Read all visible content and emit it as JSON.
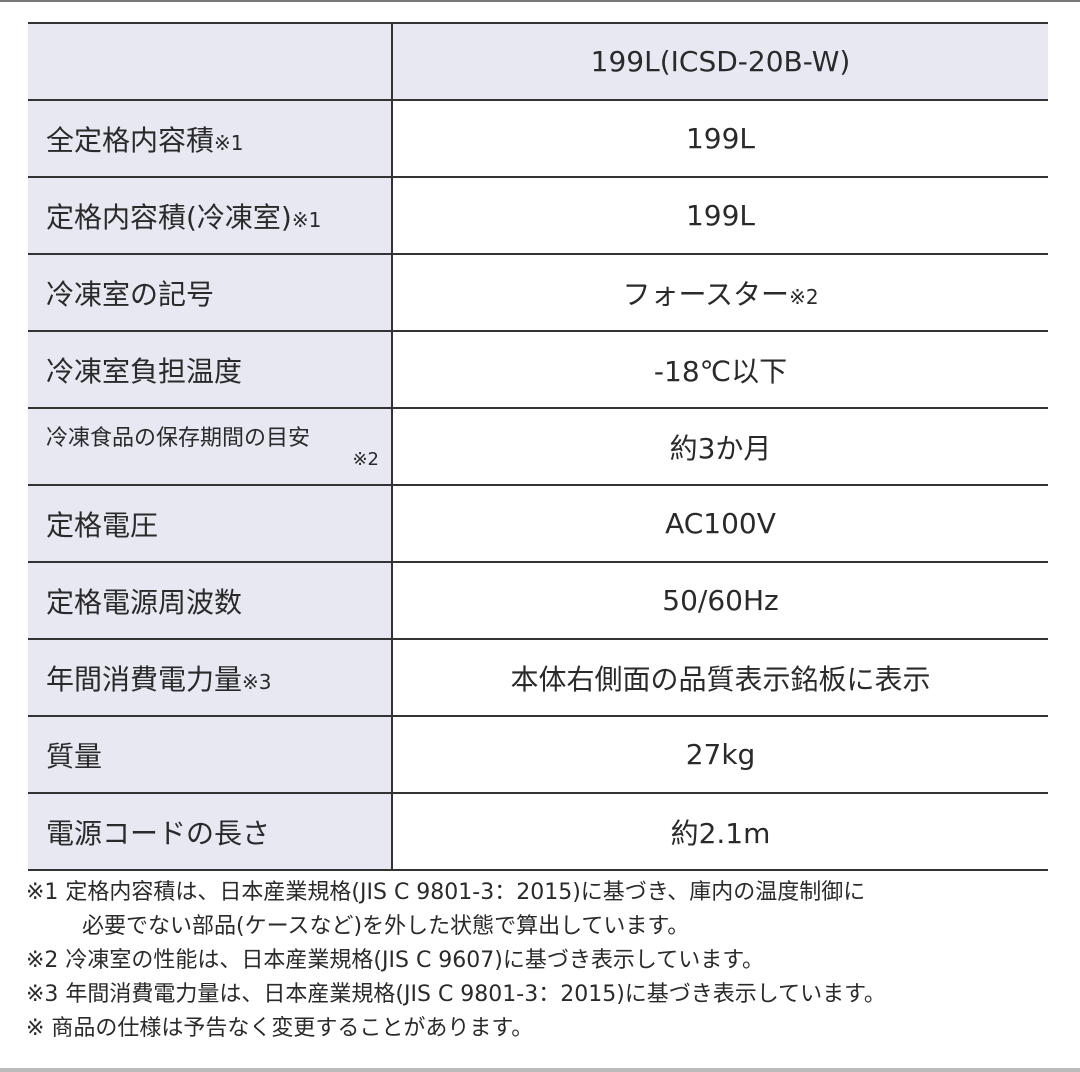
{
  "header": {
    "model": "199L(ICSD-20B-W)"
  },
  "rows": [
    {
      "label": "全定格内容積",
      "mark": "※1",
      "value": "199L"
    },
    {
      "label": "定格内容積(冷凍室)",
      "mark": "※1",
      "value": "199L"
    },
    {
      "label": "冷凍室の記号",
      "mark": "",
      "value": "フォースター",
      "value_mark": "※2"
    },
    {
      "label": "冷凍室負担温度",
      "mark": "",
      "value": "-18℃以下"
    },
    {
      "label": "冷凍食品の保存期間の目安",
      "mark": "※2",
      "value": "約3か月"
    },
    {
      "label": "定格電圧",
      "mark": "",
      "value": "AC100V"
    },
    {
      "label": "定格電源周波数",
      "mark": "",
      "value": "50/60Hz"
    },
    {
      "label": "年間消費電力量",
      "mark": "※3",
      "value": "本体右側面の品質表示銘板に表示"
    },
    {
      "label": "質量",
      "mark": "",
      "value": "27kg"
    },
    {
      "label": "電源コードの長さ",
      "mark": "",
      "value": "約2.1m"
    }
  ],
  "notes": [
    "※1 定格内容積は、日本産業規格(JIS C 9801-3：2015)に基づき、庫内の温度制御に",
    "必要でない部品(ケースなど)を外した状態で算出しています。",
    "※2 冷凍室の性能は、日本産業規格(JIS C 9607)に基づき表示しています。",
    "※3 年間消費電力量は、日本産業規格(JIS C 9801-3：2015)に基づき表示しています。",
    "※ 商品の仕様は予告なく変更することがあります。"
  ]
}
